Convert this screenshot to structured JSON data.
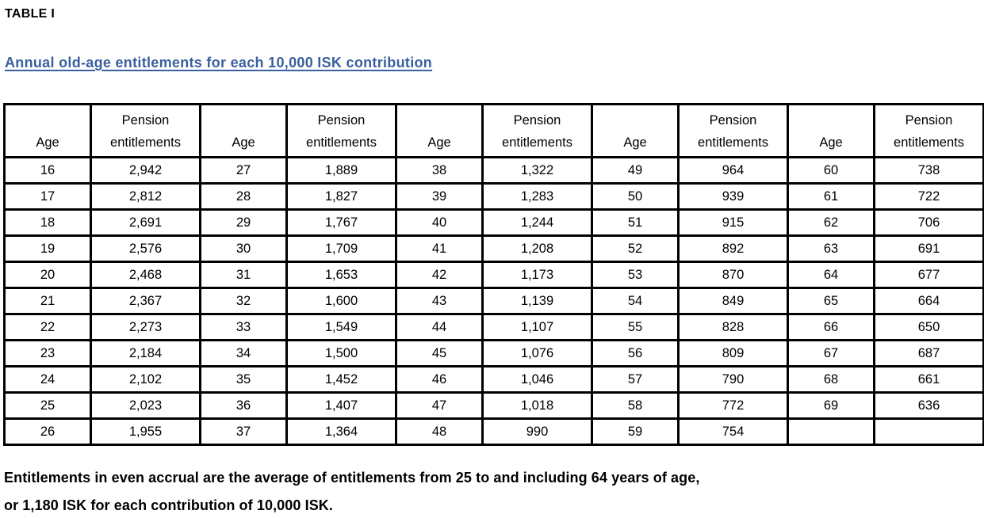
{
  "document": {
    "label": "TABLE I",
    "title": "Annual old-age entitlements for each 10,000 ISK contribution",
    "footnote": {
      "line1": "Entitlements in even accrual are the average of entitlements from 25 to and including 64 years of age,",
      "line2": "or 1,180 ISK for each contribution of 10,000 ISK."
    },
    "colors": {
      "title_blue": "#3a5f9e",
      "text": "#000000",
      "table_border": "#000000",
      "background": "#ffffff"
    }
  },
  "table": {
    "num_pairs": 5,
    "header": {
      "age": "Age",
      "pension_line1": "Pension",
      "pension_line2": "entitlements"
    },
    "rows": [
      [
        "16",
        "2,942",
        "27",
        "1,889",
        "38",
        "1,322",
        "49",
        "964",
        "60",
        "738"
      ],
      [
        "17",
        "2,812",
        "28",
        "1,827",
        "39",
        "1,283",
        "50",
        "939",
        "61",
        "722"
      ],
      [
        "18",
        "2,691",
        "29",
        "1,767",
        "40",
        "1,244",
        "51",
        "915",
        "62",
        "706"
      ],
      [
        "19",
        "2,576",
        "30",
        "1,709",
        "41",
        "1,208",
        "52",
        "892",
        "63",
        "691"
      ],
      [
        "20",
        "2,468",
        "31",
        "1,653",
        "42",
        "1,173",
        "53",
        "870",
        "64",
        "677"
      ],
      [
        "21",
        "2,367",
        "32",
        "1,600",
        "43",
        "1,139",
        "54",
        "849",
        "65",
        "664"
      ],
      [
        "22",
        "2,273",
        "33",
        "1,549",
        "44",
        "1,107",
        "55",
        "828",
        "66",
        "650"
      ],
      [
        "23",
        "2,184",
        "34",
        "1,500",
        "45",
        "1,076",
        "56",
        "809",
        "67",
        "687"
      ],
      [
        "24",
        "2,102",
        "35",
        "1,452",
        "46",
        "1,046",
        "57",
        "790",
        "68",
        "661"
      ],
      [
        "25",
        "2,023",
        "36",
        "1,407",
        "47",
        "1,018",
        "58",
        "772",
        "69",
        "636"
      ],
      [
        "26",
        "1,955",
        "37",
        "1,364",
        "48",
        "990",
        "59",
        "754",
        "",
        ""
      ]
    ]
  }
}
